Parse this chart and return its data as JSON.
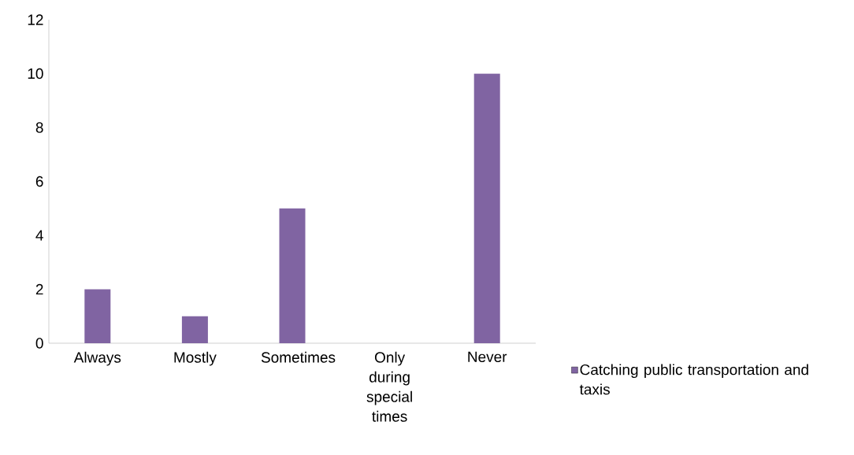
{
  "chart_data": {
    "type": "bar",
    "categories": [
      "Always",
      "Mostly",
      "Sometimes",
      "Only during special times",
      "Never"
    ],
    "series": [
      {
        "name": "Catching  public transportation and taxis",
        "color": "#8064a2",
        "values": [
          2,
          1,
          5,
          0,
          10
        ]
      }
    ],
    "ylim": [
      0,
      12
    ],
    "yticks": [
      0,
      2,
      4,
      6,
      8,
      10,
      12
    ],
    "legend": "right",
    "grid": false
  }
}
